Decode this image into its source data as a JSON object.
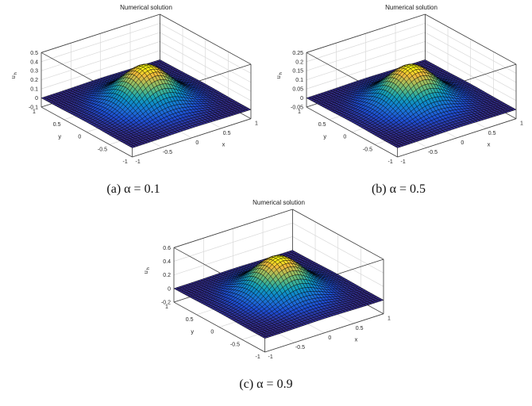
{
  "page": {
    "background": "#ffffff"
  },
  "colors": {
    "grid": "#d9d9d9",
    "box": "#3c3c3c",
    "text": "#262626",
    "title_text": "#1a1a1a",
    "surface_low": "#352a87",
    "surface_high": "#f9fb0e",
    "mesh_edge": "#000000"
  },
  "colormap_parula": [
    [
      0.0,
      "#352a87"
    ],
    [
      0.125,
      "#1e4dd3"
    ],
    [
      0.25,
      "#1c6ed8"
    ],
    [
      0.375,
      "#0e87cd"
    ],
    [
      0.5,
      "#18a5b5"
    ],
    [
      0.625,
      "#59b881"
    ],
    [
      0.75,
      "#a8be59"
    ],
    [
      0.875,
      "#f0ba3c"
    ],
    [
      1.0,
      "#f9fb0e"
    ]
  ],
  "chart_data": [
    {
      "type": "surface",
      "title": "Numerical solution",
      "xlabel": "x",
      "ylabel": "y",
      "zlabel": "u_h",
      "zlabel_main": "u",
      "zlabel_sub": "h",
      "xlim": [
        -1,
        1
      ],
      "ylim": [
        -1,
        1
      ],
      "zlim": [
        -0.1,
        0.5
      ],
      "xticks": [
        -1,
        -0.5,
        0,
        0.5,
        1
      ],
      "yticks": [
        -1,
        -0.5,
        0,
        0.5,
        1
      ],
      "zticks": [
        -0.1,
        0,
        0.1,
        0.2,
        0.3,
        0.4,
        0.5
      ],
      "alpha": 0.1,
      "caption": "(a) α = 0.1",
      "colormap": "parula",
      "grid": true,
      "view": {
        "azimuth": -37.5,
        "elevation": 30
      },
      "surface": {
        "shape": "gaussian-bump",
        "peak": 0.42,
        "base": 0,
        "shape_k": 4,
        "grid_n": 40
      }
    },
    {
      "type": "surface",
      "title": "Numerical solution",
      "xlabel": "x",
      "ylabel": "y",
      "zlabel": "u_h",
      "zlabel_main": "u",
      "zlabel_sub": "h",
      "xlim": [
        -1,
        1
      ],
      "ylim": [
        -1,
        1
      ],
      "zlim": [
        -0.05,
        0.25
      ],
      "xticks": [
        -1,
        -0.5,
        0,
        0.5,
        1
      ],
      "yticks": [
        -1,
        -0.5,
        0,
        0.5,
        1
      ],
      "zticks": [
        -0.05,
        0,
        0.05,
        0.1,
        0.15,
        0.2,
        0.25
      ],
      "alpha": 0.5,
      "caption": "(b) α = 0.5",
      "colormap": "parula",
      "grid": true,
      "view": {
        "azimuth": -37.5,
        "elevation": 30
      },
      "surface": {
        "shape": "gaussian-bump",
        "peak": 0.21,
        "base": 0,
        "shape_k": 4,
        "grid_n": 40
      }
    },
    {
      "type": "surface",
      "title": "Numerical solution",
      "xlabel": "x",
      "ylabel": "y",
      "zlabel": "u_h",
      "zlabel_main": "u",
      "zlabel_sub": "h",
      "xlim": [
        -1,
        1
      ],
      "ylim": [
        -1,
        1
      ],
      "zlim": [
        -0.2,
        0.6
      ],
      "xticks": [
        -1,
        -0.5,
        0,
        0.5,
        1
      ],
      "yticks": [
        -1,
        -0.5,
        0,
        0.5,
        1
      ],
      "zticks": [
        -0.2,
        0,
        0.2,
        0.4,
        0.6
      ],
      "alpha": 0.9,
      "caption": "(c) α = 0.9",
      "colormap": "parula",
      "grid": true,
      "view": {
        "azimuth": -37.5,
        "elevation": 30
      },
      "surface": {
        "shape": "gaussian-bump",
        "peak": 0.55,
        "base": 0,
        "shape_k": 4,
        "grid_n": 40
      }
    }
  ]
}
